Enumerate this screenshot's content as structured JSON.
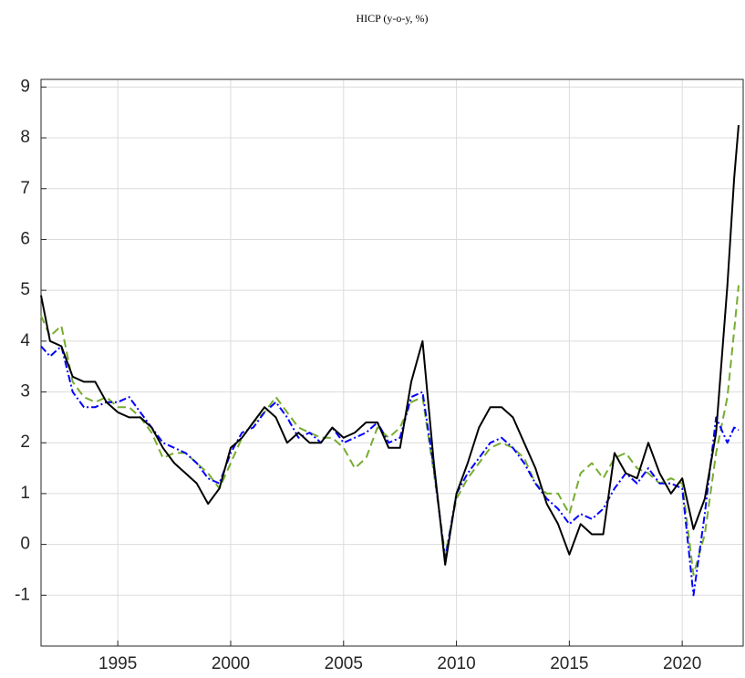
{
  "chart_data": {
    "type": "line",
    "title": "HICP (y-o-y, %)",
    "x": [
      1991.6,
      1992,
      1992.5,
      1993,
      1993.5,
      1994,
      1994.5,
      1995,
      1995.5,
      1996,
      1996.5,
      1997,
      1997.5,
      1998,
      1998.5,
      1999,
      1999.5,
      2000,
      2000.5,
      2001,
      2001.5,
      2002,
      2002.5,
      2003,
      2003.5,
      2004,
      2004.5,
      2005,
      2005.5,
      2006,
      2006.5,
      2007,
      2007.5,
      2008,
      2008.5,
      2009,
      2009.5,
      2010,
      2010.5,
      2011,
      2011.5,
      2012,
      2012.5,
      2013,
      2013.5,
      2014,
      2014.5,
      2015,
      2015.5,
      2016,
      2016.5,
      2017,
      2017.5,
      2018,
      2018.5,
      2019,
      2019.5,
      2020,
      2020.5,
      2021,
      2021.5,
      2022,
      2022.3,
      2022.5
    ],
    "series": [
      {
        "color": "#000000",
        "dash": "none",
        "values": [
          4.9,
          4.0,
          3.9,
          3.3,
          3.2,
          3.2,
          2.8,
          2.6,
          2.5,
          2.5,
          2.3,
          1.9,
          1.6,
          1.4,
          1.2,
          0.8,
          1.1,
          1.9,
          2.1,
          2.4,
          2.7,
          2.5,
          2.0,
          2.2,
          2.0,
          2.0,
          2.3,
          2.1,
          2.2,
          2.4,
          2.4,
          1.9,
          1.9,
          3.2,
          4.0,
          1.6,
          -0.4,
          1.0,
          1.6,
          2.3,
          2.7,
          2.7,
          2.5,
          2.0,
          1.5,
          0.8,
          0.4,
          -0.2,
          0.4,
          0.2,
          0.2,
          1.8,
          1.4,
          1.3,
          2.0,
          1.4,
          1.0,
          1.3,
          0.3,
          0.9,
          2.2,
          5.1,
          7.2,
          8.25
        ]
      },
      {
        "color": "#0000ff",
        "dash": "8 3 2 3",
        "values": [
          3.9,
          3.7,
          3.9,
          3.0,
          2.7,
          2.7,
          2.8,
          2.8,
          2.9,
          2.6,
          2.3,
          2.0,
          1.9,
          1.8,
          1.6,
          1.3,
          1.2,
          1.8,
          2.2,
          2.3,
          2.6,
          2.8,
          2.5,
          2.1,
          2.2,
          2.0,
          2.3,
          2.0,
          2.1,
          2.2,
          2.4,
          2.0,
          2.1,
          2.9,
          3.0,
          1.5,
          -0.3,
          1.0,
          1.4,
          1.7,
          2.0,
          2.1,
          1.9,
          1.6,
          1.2,
          0.9,
          0.7,
          0.4,
          0.6,
          0.5,
          0.7,
          1.1,
          1.4,
          1.2,
          1.5,
          1.2,
          1.2,
          1.1,
          -1.0,
          0.6,
          2.5,
          2.0,
          2.3,
          2.25
        ]
      },
      {
        "color": "#77ac30",
        "dash": "9 5",
        "values": [
          4.5,
          4.1,
          4.3,
          3.2,
          2.9,
          2.8,
          2.9,
          2.7,
          2.7,
          2.5,
          2.2,
          1.7,
          1.8,
          1.8,
          1.6,
          1.4,
          1.1,
          1.6,
          2.1,
          2.4,
          2.6,
          2.9,
          2.6,
          2.3,
          2.2,
          2.1,
          2.1,
          1.9,
          1.5,
          1.7,
          2.3,
          2.1,
          2.3,
          2.8,
          2.9,
          1.4,
          -0.2,
          0.9,
          1.3,
          1.6,
          1.9,
          2.0,
          1.9,
          1.7,
          1.2,
          1.0,
          1.0,
          0.6,
          1.4,
          1.6,
          1.3,
          1.7,
          1.8,
          1.5,
          1.4,
          1.2,
          1.3,
          1.2,
          -0.6,
          0.2,
          1.8,
          2.9,
          4.2,
          5.1
        ]
      }
    ],
    "xlim": [
      1991.6,
      2022.7
    ],
    "xticks": [
      1995,
      2000,
      2005,
      2010,
      2015,
      2020
    ],
    "ylim": [
      -2,
      9.15
    ],
    "yticks": [
      -1,
      0,
      1,
      2,
      3,
      4,
      5,
      6,
      7,
      8,
      9
    ],
    "grid": true
  }
}
